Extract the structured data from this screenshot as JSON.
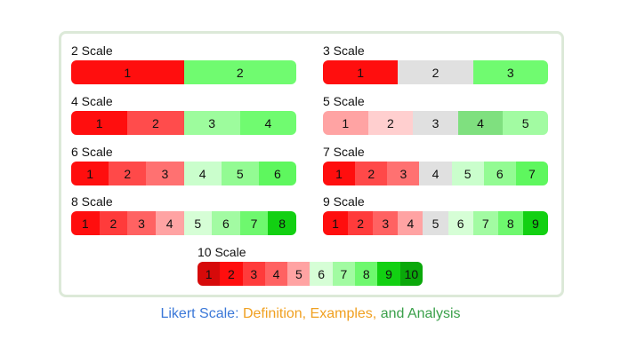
{
  "scales": [
    {
      "title": "2 Scale",
      "segments": [
        {
          "label": "1",
          "color": "#ff0e0e"
        },
        {
          "label": "2",
          "color": "#70fb70"
        }
      ]
    },
    {
      "title": "3 Scale",
      "segments": [
        {
          "label": "1",
          "color": "#ff0e0e"
        },
        {
          "label": "2",
          "color": "#e0e0e0"
        },
        {
          "label": "3",
          "color": "#70fb70"
        }
      ]
    },
    {
      "title": "4 Scale",
      "segments": [
        {
          "label": "1",
          "color": "#ff0e0e"
        },
        {
          "label": "2",
          "color": "#ff4c4c"
        },
        {
          "label": "3",
          "color": "#9dfc9d"
        },
        {
          "label": "4",
          "color": "#70fb70"
        }
      ]
    },
    {
      "title": "5 Scale",
      "segments": [
        {
          "label": "1",
          "color": "#ffa3a3"
        },
        {
          "label": "2",
          "color": "#ffcfcf"
        },
        {
          "label": "3",
          "color": "#e0e0e0"
        },
        {
          "label": "4",
          "color": "#7fe07f"
        },
        {
          "label": "5",
          "color": "#a2fba2"
        }
      ]
    },
    {
      "title": "6 Scale",
      "segments": [
        {
          "label": "1",
          "color": "#ff0e0e"
        },
        {
          "label": "2",
          "color": "#ff4949"
        },
        {
          "label": "3",
          "color": "#ff7171"
        },
        {
          "label": "4",
          "color": "#cafecc"
        },
        {
          "label": "5",
          "color": "#93fb93"
        },
        {
          "label": "6",
          "color": "#5ef75e"
        }
      ]
    },
    {
      "title": "7 Scale",
      "segments": [
        {
          "label": "1",
          "color": "#ff0e0e"
        },
        {
          "label": "2",
          "color": "#ff4949"
        },
        {
          "label": "3",
          "color": "#ff7171"
        },
        {
          "label": "4",
          "color": "#e0e0e0"
        },
        {
          "label": "5",
          "color": "#cafecc"
        },
        {
          "label": "6",
          "color": "#93fb93"
        },
        {
          "label": "7",
          "color": "#5ef75e"
        }
      ]
    },
    {
      "title": "8 Scale",
      "segments": [
        {
          "label": "1",
          "color": "#ff0e0e"
        },
        {
          "label": "2",
          "color": "#ff3b3b"
        },
        {
          "label": "3",
          "color": "#ff6262"
        },
        {
          "label": "4",
          "color": "#ffa3a3"
        },
        {
          "label": "5",
          "color": "#d6fed6"
        },
        {
          "label": "6",
          "color": "#a2fba2"
        },
        {
          "label": "7",
          "color": "#6ef86e"
        },
        {
          "label": "8",
          "color": "#12d012"
        }
      ]
    },
    {
      "title": "9 Scale",
      "segments": [
        {
          "label": "1",
          "color": "#ff0e0e"
        },
        {
          "label": "2",
          "color": "#ff3b3b"
        },
        {
          "label": "3",
          "color": "#ff6262"
        },
        {
          "label": "4",
          "color": "#ffa3a3"
        },
        {
          "label": "5",
          "color": "#e0e0e0"
        },
        {
          "label": "6",
          "color": "#d6fed6"
        },
        {
          "label": "7",
          "color": "#a2fba2"
        },
        {
          "label": "8",
          "color": "#6ef86e"
        },
        {
          "label": "9",
          "color": "#12d012"
        }
      ]
    },
    {
      "title": "10 Scale",
      "segments": [
        {
          "label": "1",
          "color": "#d60a0a"
        },
        {
          "label": "2",
          "color": "#ff0e0e"
        },
        {
          "label": "3",
          "color": "#ff3b3b"
        },
        {
          "label": "4",
          "color": "#ff6262"
        },
        {
          "label": "5",
          "color": "#ffa3a3"
        },
        {
          "label": "6",
          "color": "#d6fed6"
        },
        {
          "label": "7",
          "color": "#a2fba2"
        },
        {
          "label": "8",
          "color": "#6ef86e"
        },
        {
          "label": "9",
          "color": "#12d012"
        },
        {
          "label": "10",
          "color": "#0aa80a"
        }
      ]
    }
  ],
  "caption": {
    "part1": "Likert Scale:",
    "part2": " Definition,",
    "part3": " Examples,",
    "part4": " and Analysis",
    "colors": [
      "#3b78d8",
      "#f0a020",
      "#f0a020",
      "#3aa04a"
    ]
  }
}
